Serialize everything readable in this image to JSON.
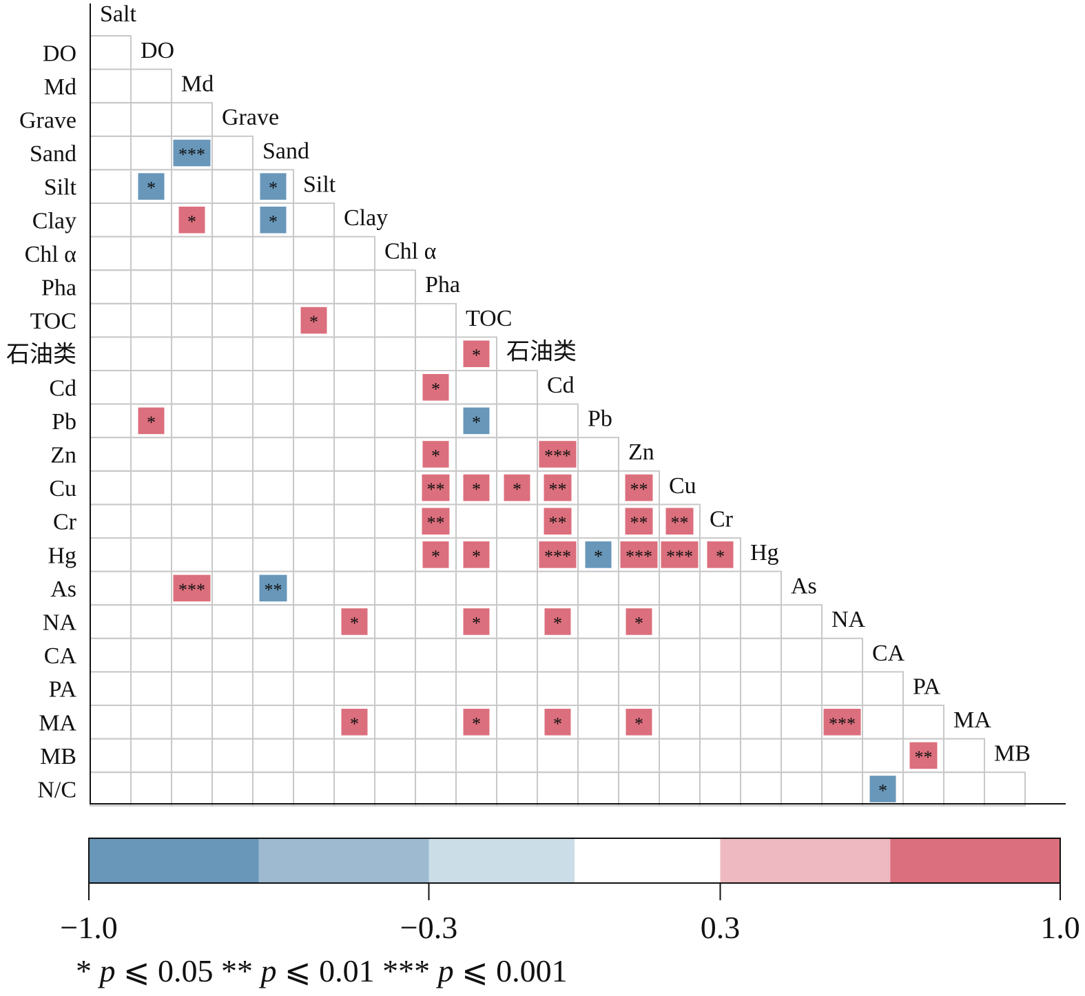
{
  "chart_data": {
    "type": "heatmap",
    "title": "",
    "variables": [
      "Salt",
      "DO",
      "Md",
      "Grave",
      "Sand",
      "Silt",
      "Clay",
      "Chl α",
      "Pha",
      "TOC",
      "石油类",
      "Cd",
      "Pb",
      "Zn",
      "Cu",
      "Cr",
      "Hg",
      "As",
      "NA",
      "CA",
      "PA",
      "MA",
      "MB",
      "N/C"
    ],
    "cells": [
      {
        "row": "Sand",
        "col": "Md",
        "sign": "negative",
        "sig": "***"
      },
      {
        "row": "Silt",
        "col": "DO",
        "sign": "negative",
        "sig": "*"
      },
      {
        "row": "Silt",
        "col": "Sand",
        "sign": "negative",
        "sig": "*"
      },
      {
        "row": "Clay",
        "col": "Md",
        "sign": "positive",
        "sig": "*"
      },
      {
        "row": "Clay",
        "col": "Sand",
        "sign": "negative",
        "sig": "*"
      },
      {
        "row": "TOC",
        "col": "Silt",
        "sign": "positive",
        "sig": "*"
      },
      {
        "row": "石油类",
        "col": "TOC",
        "sign": "positive",
        "sig": "*"
      },
      {
        "row": "Cd",
        "col": "Pha",
        "sign": "positive",
        "sig": "*"
      },
      {
        "row": "Pb",
        "col": "DO",
        "sign": "positive",
        "sig": "*"
      },
      {
        "row": "Pb",
        "col": "TOC",
        "sign": "negative",
        "sig": "*"
      },
      {
        "row": "Zn",
        "col": "Pha",
        "sign": "positive",
        "sig": "*"
      },
      {
        "row": "Zn",
        "col": "Cd",
        "sign": "positive",
        "sig": "***"
      },
      {
        "row": "Cu",
        "col": "Pha",
        "sign": "positive",
        "sig": "**"
      },
      {
        "row": "Cu",
        "col": "TOC",
        "sign": "positive",
        "sig": "*"
      },
      {
        "row": "Cu",
        "col": "石油类",
        "sign": "positive",
        "sig": "*"
      },
      {
        "row": "Cu",
        "col": "Cd",
        "sign": "positive",
        "sig": "**"
      },
      {
        "row": "Cu",
        "col": "Zn",
        "sign": "positive",
        "sig": "**"
      },
      {
        "row": "Cr",
        "col": "Pha",
        "sign": "positive",
        "sig": "**"
      },
      {
        "row": "Cr",
        "col": "Cd",
        "sign": "positive",
        "sig": "**"
      },
      {
        "row": "Cr",
        "col": "Zn",
        "sign": "positive",
        "sig": "**"
      },
      {
        "row": "Cr",
        "col": "Cu",
        "sign": "positive",
        "sig": "**"
      },
      {
        "row": "Hg",
        "col": "Pha",
        "sign": "positive",
        "sig": "*"
      },
      {
        "row": "Hg",
        "col": "TOC",
        "sign": "positive",
        "sig": "*"
      },
      {
        "row": "Hg",
        "col": "Cd",
        "sign": "positive",
        "sig": "***"
      },
      {
        "row": "Hg",
        "col": "Pb",
        "sign": "negative",
        "sig": "*"
      },
      {
        "row": "Hg",
        "col": "Zn",
        "sign": "positive",
        "sig": "***"
      },
      {
        "row": "Hg",
        "col": "Cu",
        "sign": "positive",
        "sig": "***"
      },
      {
        "row": "Hg",
        "col": "Cr",
        "sign": "positive",
        "sig": "*"
      },
      {
        "row": "As",
        "col": "Md",
        "sign": "positive",
        "sig": "***"
      },
      {
        "row": "As",
        "col": "Sand",
        "sign": "negative",
        "sig": "**"
      },
      {
        "row": "NA",
        "col": "Clay",
        "sign": "positive",
        "sig": "*"
      },
      {
        "row": "NA",
        "col": "TOC",
        "sign": "positive",
        "sig": "*"
      },
      {
        "row": "NA",
        "col": "Cd",
        "sign": "positive",
        "sig": "*"
      },
      {
        "row": "NA",
        "col": "Zn",
        "sign": "positive",
        "sig": "*"
      },
      {
        "row": "MA",
        "col": "Clay",
        "sign": "positive",
        "sig": "*"
      },
      {
        "row": "MA",
        "col": "TOC",
        "sign": "positive",
        "sig": "*"
      },
      {
        "row": "MA",
        "col": "Cd",
        "sign": "positive",
        "sig": "*"
      },
      {
        "row": "MA",
        "col": "Zn",
        "sign": "positive",
        "sig": "*"
      },
      {
        "row": "MA",
        "col": "NA",
        "sign": "positive",
        "sig": "***"
      },
      {
        "row": "MB",
        "col": "PA",
        "sign": "positive",
        "sig": "**"
      },
      {
        "row": "N/C",
        "col": "CA",
        "sign": "negative",
        "sig": "*"
      }
    ],
    "colorbar": {
      "range": [
        -1.0,
        1.0
      ],
      "tick_labels": [
        "−1.0",
        "−0.3",
        "0.3",
        "1.0"
      ],
      "tick_values": [
        -1.0,
        -0.3,
        0.3,
        1.0
      ],
      "bins": [
        {
          "from": -1.0,
          "to": -0.65,
          "color": "#6897ba"
        },
        {
          "from": -0.65,
          "to": -0.3,
          "color": "#9dbad0"
        },
        {
          "from": -0.3,
          "to": 0.0,
          "color": "#cbdde6"
        },
        {
          "from": 0.0,
          "to": 0.3,
          "color": "#ffffff"
        },
        {
          "from": 0.3,
          "to": 0.65,
          "color": "#eeb9c0"
        },
        {
          "from": 0.65,
          "to": 1.0,
          "color": "#dc6f7d"
        }
      ]
    },
    "legend": {
      "items": [
        {
          "stars": "*",
          "p": "p",
          "rel": " ⩽ 0.05"
        },
        {
          "stars": "**",
          "p": "p",
          "rel": " ⩽ 0.01"
        },
        {
          "stars": "***",
          "p": "p",
          "rel": " ⩽ 0.001"
        }
      ]
    },
    "colors": {
      "positive": "#dc6f7d",
      "negative": "#6897ba",
      "grid": "#c8c8c8",
      "axis": "#111111",
      "text": "#111111"
    }
  }
}
